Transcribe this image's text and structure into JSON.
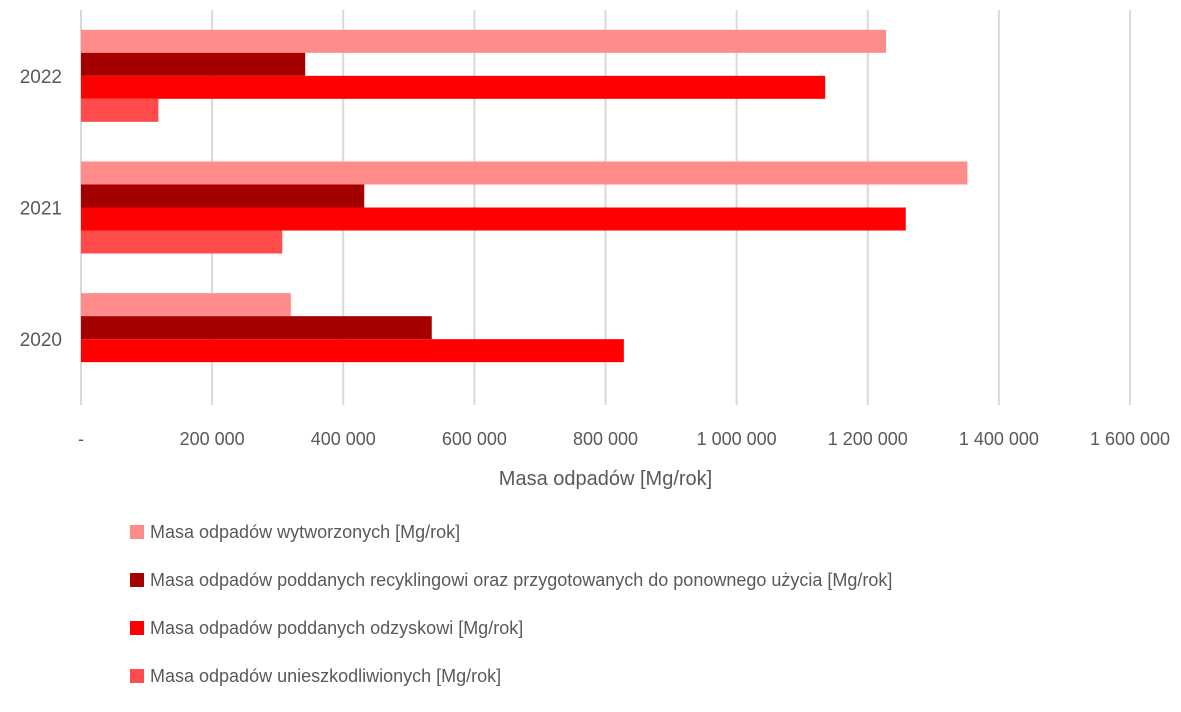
{
  "chart_data": {
    "type": "bar",
    "orientation": "horizontal",
    "categories": [
      "2020",
      "2021",
      "2022"
    ],
    "series": [
      {
        "name": "Masa odpadów wytworzonych [Mg/rok]",
        "color": "#ff8b8b",
        "values": [
          320000,
          1352000,
          1228000
        ]
      },
      {
        "name": "Masa odpadów poddanych recyklingowi oraz przygotowanych do ponownego użycia [Mg/rok]",
        "color": "#a50000",
        "values": [
          535000,
          432000,
          342000
        ]
      },
      {
        "name": "Masa odpadów poddanych odzyskowi [Mg/rok]",
        "color": "#ff0000",
        "values": [
          828000,
          1258000,
          1135000
        ]
      },
      {
        "name": "Masa odpadów unieszkodliwionych [Mg/rok]",
        "color": "#ff4b4b",
        "values": [
          0,
          307000,
          118000
        ]
      }
    ],
    "xlabel": "Masa odpadów [Mg/rok]",
    "ylabel": "",
    "xlim": [
      0,
      1600000
    ],
    "xticks": [
      0,
      200000,
      400000,
      600000,
      800000,
      1000000,
      1200000,
      1400000,
      1600000
    ],
    "xtick_labels": [
      "-",
      "200 000",
      "400 000",
      "600 000",
      "800 000",
      "1 000 000",
      "1 200 000",
      "1 400 000",
      "1 600 000"
    ],
    "grid": "vertical",
    "legend_position": "bottom"
  }
}
